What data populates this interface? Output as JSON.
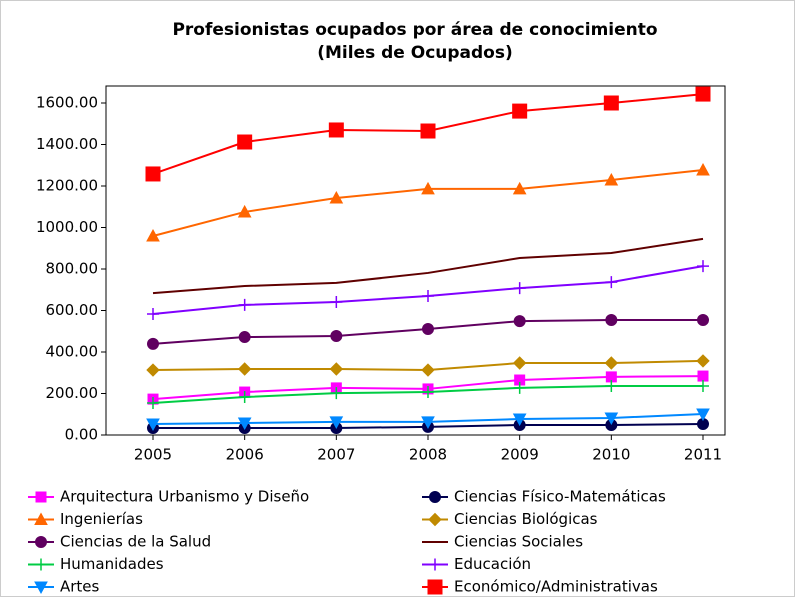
{
  "chart_data": {
    "type": "line",
    "title": "Profesionistas ocupados por área de conocimiento",
    "subtitle": "(Miles de Ocupados)",
    "categories": [
      "2005",
      "2006",
      "2007",
      "2008",
      "2009",
      "2010",
      "2011"
    ],
    "ylim": [
      0,
      1600
    ],
    "yticks": [
      {
        "value": 0,
        "label": "0.00"
      },
      {
        "value": 200,
        "label": "200.00"
      },
      {
        "value": 400,
        "label": "400.00"
      },
      {
        "value": 600,
        "label": "600.00"
      },
      {
        "value": 800,
        "label": "800.00"
      },
      {
        "value": 1000,
        "label": "1000.00"
      },
      {
        "value": 1200,
        "label": "1200.00"
      },
      {
        "value": 1400,
        "label": "1400.00"
      },
      {
        "value": 1600,
        "label": "1600.00"
      }
    ],
    "series": [
      {
        "name": "Arquitectura Urbanismo y Diseño",
        "color": "#ff00ff",
        "marker": "square",
        "values": [
          173,
          207,
          227,
          222,
          265,
          280,
          284
        ]
      },
      {
        "name": "Ciencias Físico-Matemáticas",
        "color": "#000050",
        "marker": "circle",
        "values": [
          34,
          34,
          34,
          39,
          48,
          48,
          53
        ]
      },
      {
        "name": "Ingenierías",
        "color": "#ff6600",
        "marker": "triangle",
        "values": [
          959,
          1075,
          1142,
          1186,
          1186,
          1229,
          1277
        ]
      },
      {
        "name": "Ciencias Biológicas",
        "color": "#c08a00",
        "marker": "diamond",
        "values": [
          313,
          318,
          318,
          313,
          347,
          347,
          357
        ]
      },
      {
        "name": "Ciencias de la Salud",
        "color": "#600060",
        "marker": "circle",
        "values": [
          439,
          472,
          477,
          511,
          549,
          554,
          554
        ]
      },
      {
        "name": "Ciencias Sociales",
        "color": "#600000",
        "marker": "none",
        "values": [
          684,
          718,
          733,
          781,
          853,
          877,
          945
        ]
      },
      {
        "name": "Humanidades",
        "color": "#00cc44",
        "marker": "plus",
        "values": [
          154,
          183,
          202,
          207,
          227,
          236,
          236
        ]
      },
      {
        "name": "Educación",
        "color": "#8000ff",
        "marker": "plus",
        "values": [
          583,
          627,
          641,
          670,
          708,
          737,
          814
        ]
      },
      {
        "name": "Artes",
        "color": "#0088ff",
        "marker": "triangle-down",
        "values": [
          53,
          58,
          63,
          63,
          77,
          82,
          101
        ]
      },
      {
        "name": "Económico/Administrativas",
        "color": "#ff0000",
        "marker": "big-square",
        "values": [
          1258,
          1412,
          1470,
          1465,
          1561,
          1600,
          1643
        ]
      }
    ]
  }
}
